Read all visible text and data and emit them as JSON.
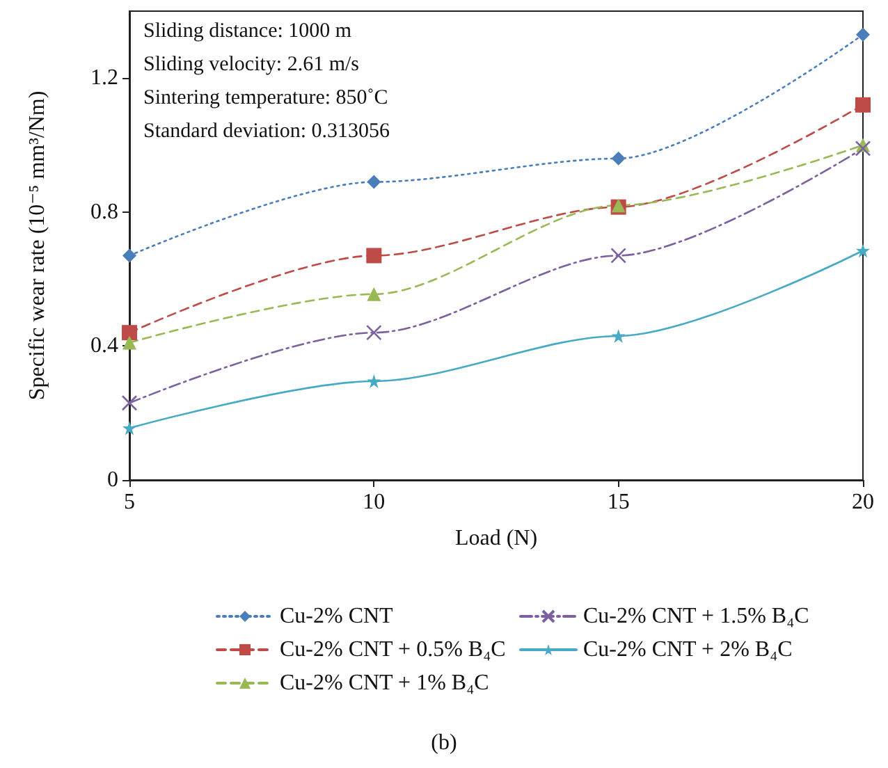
{
  "chart_data": {
    "type": "line",
    "xlabel": "Load (N)",
    "ylabel": "Specific wear rate (10⁻⁵ mm³/Nm)",
    "x": [
      5,
      10,
      15,
      20
    ],
    "xlim": [
      5,
      20
    ],
    "xticks": [
      5,
      10,
      15,
      20
    ],
    "ylim": [
      0,
      1.4
    ],
    "yticks": [
      0,
      0.4,
      0.8,
      1.2
    ],
    "grid": false,
    "legend": "bottom",
    "annotations": [
      "Sliding distance: 1000 m",
      "Sliding velocity: 2.61 m/s",
      "Sintering temperature: 850˚C",
      "Standard deviation: 0.313056",
      "(b)"
    ],
    "series": [
      {
        "name": "Cu-2% CNT",
        "color": "#4a7ebb",
        "marker": "diamond",
        "line_style": "dotted",
        "values": [
          0.67,
          0.89,
          0.96,
          1.33
        ]
      },
      {
        "name": "Cu-2% CNT + 0.5% B₄C",
        "color": "#be4b48",
        "marker": "square",
        "line_style": "dashed",
        "values": [
          0.44,
          0.67,
          0.815,
          1.12
        ]
      },
      {
        "name": "Cu-2% CNT + 1% B₄C",
        "color": "#98b954",
        "marker": "triangle",
        "line_style": "dashed",
        "values": [
          0.41,
          0.555,
          0.82,
          1.0
        ]
      },
      {
        "name": "Cu-2% CNT + 1.5% B₄C",
        "color": "#7d60a0",
        "marker": "cross",
        "line_style": "dashdot",
        "values": [
          0.23,
          0.44,
          0.67,
          0.99
        ]
      },
      {
        "name": "Cu-2% CNT + 2% B₄C",
        "color": "#46aac5",
        "marker": "star",
        "line_style": "solid",
        "values": [
          0.155,
          0.295,
          0.43,
          0.685
        ]
      }
    ]
  }
}
